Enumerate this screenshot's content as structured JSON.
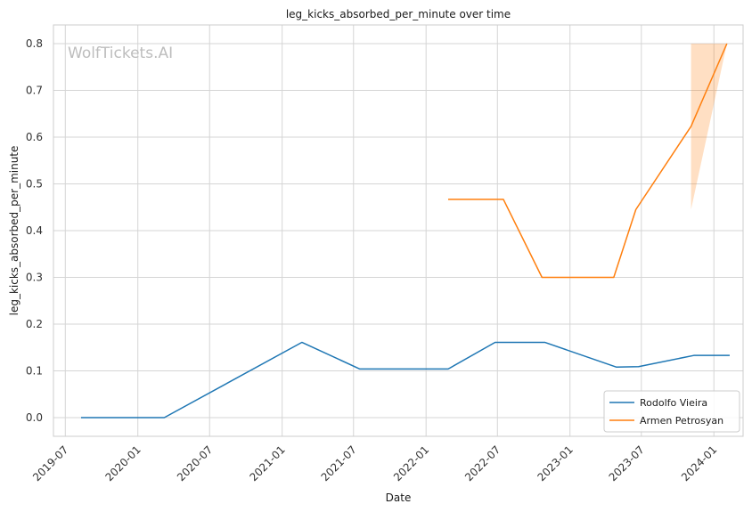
{
  "chart_data": {
    "type": "line",
    "title": "leg_kicks_absorbed_per_minute over time",
    "xlabel": "Date",
    "ylabel": "leg_kicks_absorbed_per_minute",
    "watermark": "WolfTickets.AI",
    "grid": true,
    "legend_position": "bottom-right",
    "xlim": [
      "2019-06-01",
      "2024-03-15"
    ],
    "ylim": [
      -0.04,
      0.84
    ],
    "x_ticks": [
      "2019-07",
      "2020-01",
      "2020-07",
      "2021-01",
      "2021-07",
      "2022-01",
      "2022-07",
      "2023-01",
      "2023-07",
      "2024-01"
    ],
    "y_ticks": [
      "0.0",
      "0.1",
      "0.2",
      "0.3",
      "0.4",
      "0.5",
      "0.6",
      "0.7",
      "0.8"
    ],
    "series": [
      {
        "name": "Rodolfo Vieira",
        "color": "#1f77b4",
        "points": [
          {
            "x": "2019-08-10",
            "y": 0.0
          },
          {
            "x": "2020-03-08",
            "y": 0.0
          },
          {
            "x": "2021-02-20",
            "y": 0.161
          },
          {
            "x": "2021-07-17",
            "y": 0.104
          },
          {
            "x": "2022-02-26",
            "y": 0.104
          },
          {
            "x": "2022-06-25",
            "y": 0.161
          },
          {
            "x": "2022-10-29",
            "y": 0.161
          },
          {
            "x": "2023-04-29",
            "y": 0.108
          },
          {
            "x": "2023-06-24",
            "y": 0.109
          },
          {
            "x": "2023-11-11",
            "y": 0.133
          },
          {
            "x": "2024-02-10",
            "y": 0.133
          }
        ]
      },
      {
        "name": "Armen Petrosyan",
        "color": "#ff7f0e",
        "points": [
          {
            "x": "2022-02-26",
            "y": 0.467
          },
          {
            "x": "2022-07-16",
            "y": 0.467
          },
          {
            "x": "2022-10-22",
            "y": 0.3
          },
          {
            "x": "2023-04-22",
            "y": 0.3
          },
          {
            "x": "2023-06-17",
            "y": 0.445
          },
          {
            "x": "2023-11-04",
            "y": 0.623
          },
          {
            "x": "2024-02-03",
            "y": 0.8
          }
        ],
        "band": [
          {
            "x": "2023-11-04",
            "lower": 0.445,
            "upper": 0.8
          },
          {
            "x": "2024-02-03",
            "lower": 0.8,
            "upper": 0.8
          }
        ]
      }
    ]
  }
}
